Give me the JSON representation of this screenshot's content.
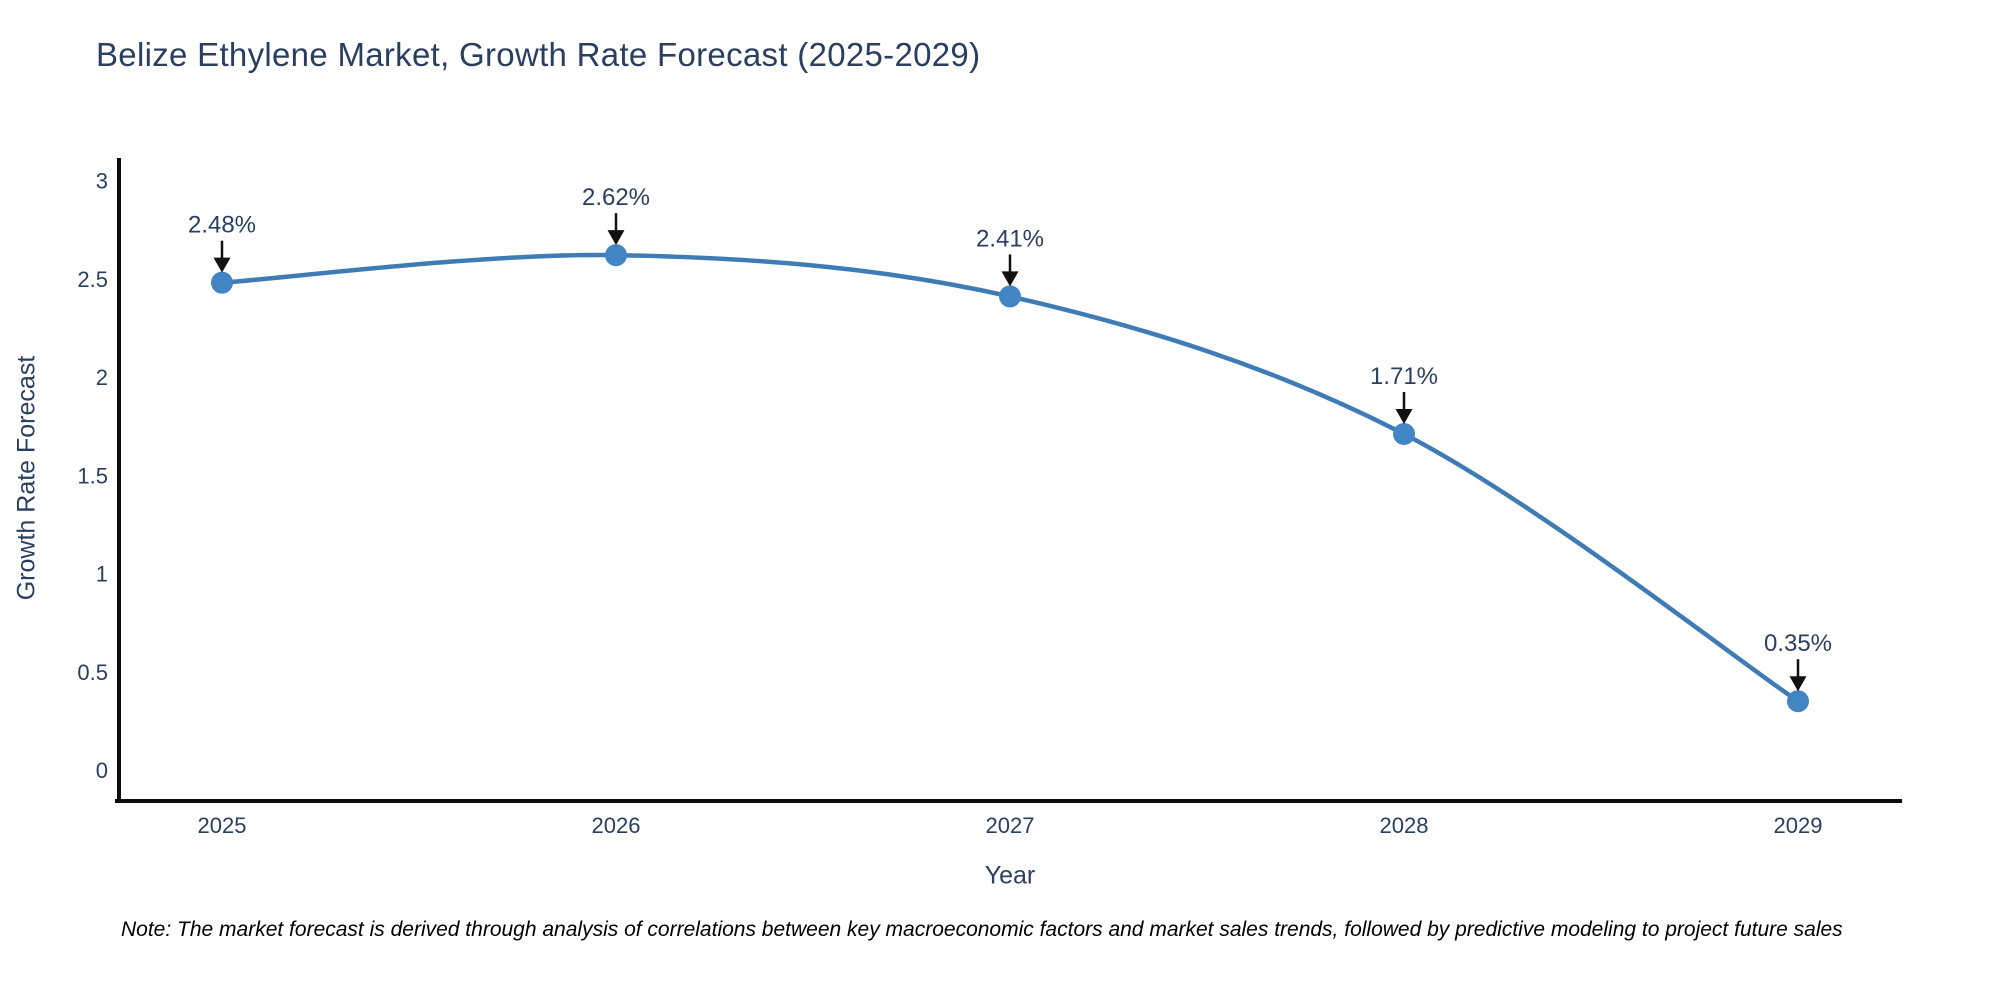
{
  "note": "Note: The market forecast is derived through analysis of correlations between key macroeconomic factors and market sales trends, followed by predictive modeling to project future sales",
  "chart_data": {
    "type": "line",
    "title": "Belize Ethylene Market, Growth Rate Forecast (2025-2029)",
    "xlabel": "Year",
    "ylabel": "Growth Rate Forecast",
    "x": [
      2025,
      2026,
      2027,
      2028,
      2029
    ],
    "y": [
      2.48,
      2.62,
      2.41,
      1.71,
      0.35
    ],
    "point_labels": [
      "2.48%",
      "2.62%",
      "2.41%",
      "1.71%",
      "0.35%"
    ],
    "xtick_labels": [
      "2025",
      "2026",
      "2027",
      "2028",
      "2029"
    ],
    "yticks": [
      0,
      0.5,
      1,
      1.5,
      2,
      2.5,
      3
    ],
    "ytick_labels": [
      "0",
      "0.5",
      "1",
      "1.5",
      "2",
      "2.5",
      "3"
    ],
    "ylim": [
      0,
      3
    ],
    "grid": false,
    "legend": "none",
    "line_shape": "spline",
    "colors": {
      "line": "#3f7cb6",
      "marker": "#4285c4",
      "axis": "#0d0d0d",
      "text": "#2a3f5f",
      "annotation_arrow": "#111111"
    }
  }
}
